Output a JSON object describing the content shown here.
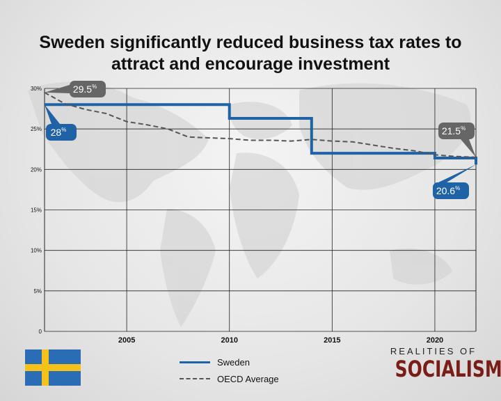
{
  "chart_data": {
    "type": "line",
    "title": "Sweden significantly reduced business tax rates to attract and encourage investment",
    "xlabel": "",
    "ylabel": "",
    "xlim": [
      2001,
      2022
    ],
    "ylim": [
      0,
      30
    ],
    "x_ticks": [
      {
        "value": 2005,
        "label": "2005"
      },
      {
        "value": 2010,
        "label": "2010"
      },
      {
        "value": 2015,
        "label": "2015"
      },
      {
        "value": 2020,
        "label": "2020"
      }
    ],
    "y_ticks": [
      {
        "value": 0,
        "label": "0"
      },
      {
        "value": 5,
        "label": "5%"
      },
      {
        "value": 10,
        "label": "10%"
      },
      {
        "value": 15,
        "label": "15%"
      },
      {
        "value": 20,
        "label": "20%"
      },
      {
        "value": 25,
        "label": "25%"
      },
      {
        "value": 30,
        "label": "30%"
      }
    ],
    "series": [
      {
        "name": "Sweden",
        "color": "#1f63a6",
        "style": "solid-step",
        "x": [
          2001,
          2010,
          2010,
          2014,
          2014,
          2020,
          2020,
          2022,
          2022
        ],
        "y": [
          28,
          28,
          26.3,
          26.3,
          22,
          22,
          21.4,
          21.4,
          20.6
        ]
      },
      {
        "name": "OECD Average",
        "color": "#555555",
        "style": "dashed",
        "x": [
          2001,
          2002,
          2003,
          2004,
          2005,
          2006,
          2007,
          2008,
          2009,
          2010,
          2011,
          2012,
          2013,
          2014,
          2015,
          2016,
          2017,
          2018,
          2019,
          2020,
          2021,
          2022
        ],
        "y": [
          29.5,
          28.1,
          27.4,
          26.9,
          25.9,
          25.5,
          25.0,
          24.0,
          23.9,
          23.8,
          23.6,
          23.6,
          23.5,
          23.7,
          23.5,
          23.4,
          23.0,
          22.6,
          22.3,
          21.8,
          21.6,
          21.5
        ]
      }
    ],
    "annotations": [
      {
        "id": "sweden-start",
        "series": "Sweden",
        "x": 2001,
        "y": 28,
        "value": "28",
        "suffix": "%",
        "color": "#1f63a6"
      },
      {
        "id": "oecd-start",
        "series": "OECD Average",
        "x": 2001,
        "y": 29.5,
        "value": "29.5",
        "suffix": "%",
        "color": "#666666"
      },
      {
        "id": "oecd-end",
        "series": "OECD Average",
        "x": 2022,
        "y": 21.5,
        "value": "21.5",
        "suffix": "%",
        "color": "#666666"
      },
      {
        "id": "sweden-end",
        "series": "Sweden",
        "x": 2022,
        "y": 20.6,
        "value": "20.6",
        "suffix": "%",
        "color": "#1f63a6"
      }
    ],
    "legend": [
      {
        "label": "Sweden"
      },
      {
        "label": "OECD Average"
      }
    ],
    "legend_position": "bottom-center"
  },
  "branding": {
    "line1": "REALITIES OF",
    "line2": "SOCIALISM"
  },
  "flag": {
    "country": "Sweden",
    "blue": "#2a6db5",
    "yellow": "#f4c21a"
  }
}
